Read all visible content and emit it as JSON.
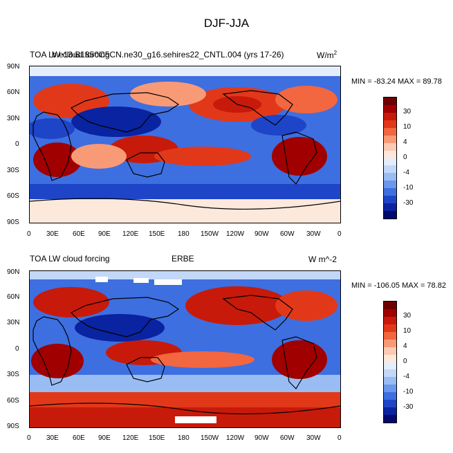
{
  "figure_title": "DJF-JJA",
  "colorbar_levels": [
    "30",
    "10",
    "4",
    "0",
    "-4",
    "-10",
    "-30"
  ],
  "colorbar_colors": [
    "#6e0000",
    "#a00000",
    "#c71a0a",
    "#e2381a",
    "#f26640",
    "#f99a76",
    "#fcc9b2",
    "#fde8dc",
    "#e4eefb",
    "#c3d8f8",
    "#99bcf3",
    "#6b98ec",
    "#3e6fe0",
    "#1e45c8",
    "#0a23a0",
    "#000a6e"
  ],
  "lon_ticks": [
    "0",
    "30E",
    "60E",
    "90E",
    "120E",
    "150E",
    "180",
    "150W",
    "120W",
    "90W",
    "60W",
    "30W",
    "0"
  ],
  "lat_ticks": [
    "90N",
    "60N",
    "30N",
    "0",
    "30S",
    "60S",
    "90S"
  ],
  "panels": [
    {
      "left_title": "TOA LW cloud forcing",
      "center_title": "b.e13.B1850C5CN.ne30_g16.sehires22_CNTL.004 (yrs 17-26)",
      "units_main": "W/m",
      "units_sup": "2",
      "min_max": "MIN = -83.24 MAX =  89.78"
    },
    {
      "left_title": "TOA LW cloud forcing",
      "center_title": "ERBE",
      "units_main": "W m^-2",
      "units_sup": "",
      "min_max": "MIN = -106.05 MAX =  78.82"
    }
  ]
}
